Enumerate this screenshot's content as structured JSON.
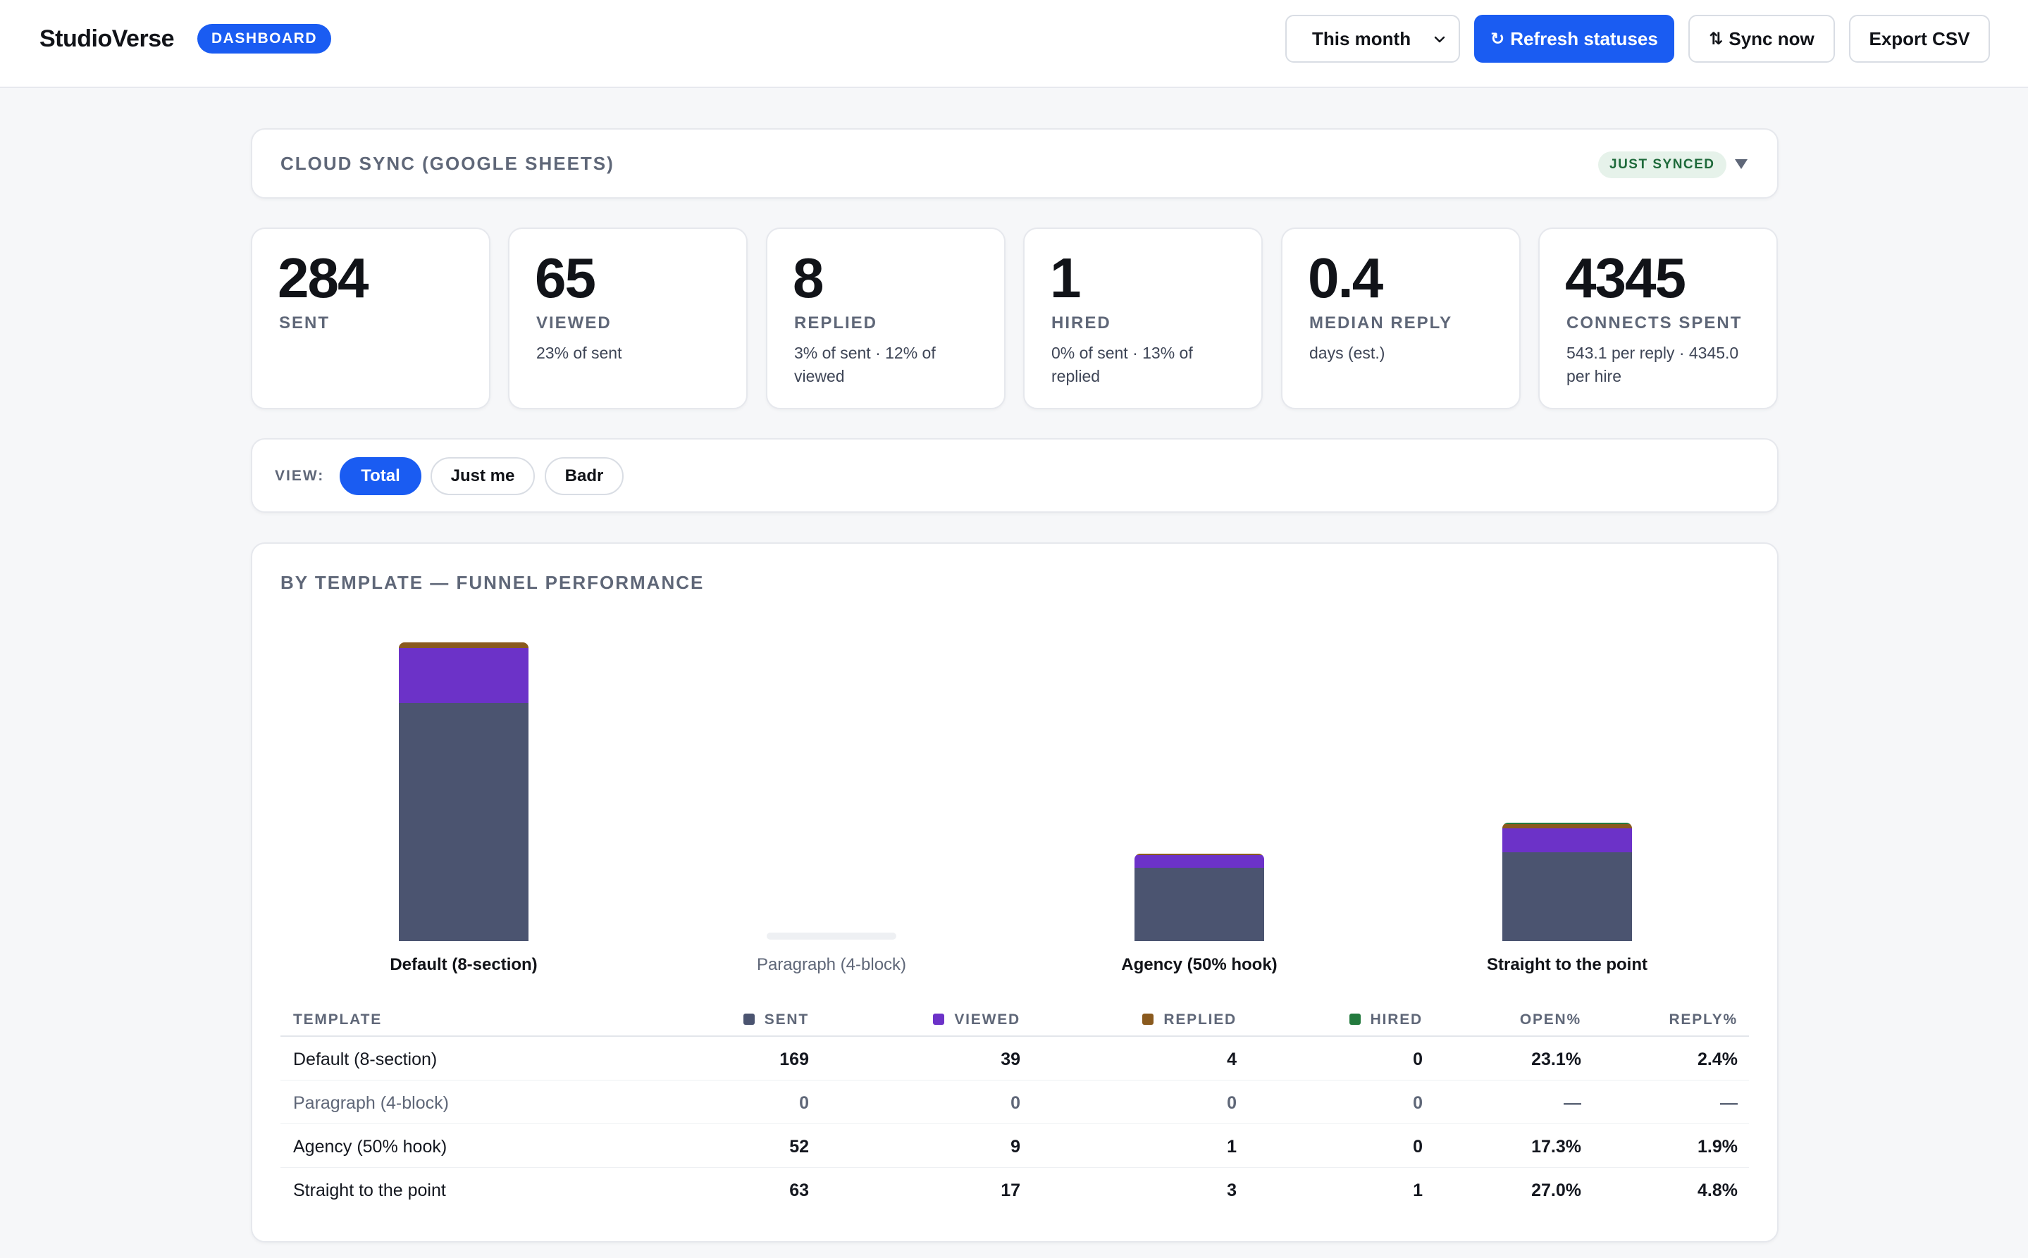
{
  "app": {
    "title": "StudioVerse",
    "badge": "DASHBOARD"
  },
  "toolbar": {
    "period": "This month",
    "refresh_label": "Refresh statuses",
    "refresh_glyph": "↻",
    "sync_label": "Sync now",
    "sync_glyph": "⇅",
    "export_label": "Export CSV"
  },
  "cloud_sync": {
    "title": "CLOUD SYNC (GOOGLE SHEETS)",
    "status": "JUST SYNCED",
    "toggle_icon": "caret-down-icon"
  },
  "stats": [
    {
      "value": "284",
      "label": "SENT",
      "sub": ""
    },
    {
      "value": "65",
      "label": "VIEWED",
      "sub": "23% of sent"
    },
    {
      "value": "8",
      "label": "REPLIED",
      "sub": "3% of sent · 12% of viewed"
    },
    {
      "value": "1",
      "label": "HIRED",
      "sub": "0% of sent · 13% of replied"
    },
    {
      "value": "0.4",
      "label": "MEDIAN REPLY",
      "sub": "days (est.)"
    },
    {
      "value": "4345",
      "label": "CONNECTS SPENT",
      "sub": "543.1 per reply · 4345.0 per hire"
    }
  ],
  "view": {
    "label": "VIEW:",
    "options": [
      "Total",
      "Just me",
      "Badr"
    ],
    "selected": "Total"
  },
  "funnel": {
    "title": "BY TEMPLATE — FUNNEL PERFORMANCE",
    "colors": {
      "sent": "#4b5470",
      "viewed": "#6c32c8",
      "replied": "#8a5a1e",
      "hired": "#237a3e",
      "empty": "#eef0f3",
      "muted_label": "#5f6778"
    },
    "table": {
      "headers": [
        "TEMPLATE",
        "SENT",
        "VIEWED",
        "REPLIED",
        "HIRED",
        "OPEN%",
        "REPLY%"
      ],
      "rows": [
        {
          "template": "Default (8-section)",
          "sent": "169",
          "viewed": "39",
          "replied": "4",
          "hired": "0",
          "open": "23.1%",
          "reply": "2.4%"
        },
        {
          "template": "Paragraph (4-block)",
          "sent": "0",
          "viewed": "0",
          "replied": "0",
          "hired": "0",
          "open": "—",
          "reply": "—"
        },
        {
          "template": "Agency (50% hook)",
          "sent": "52",
          "viewed": "9",
          "replied": "1",
          "hired": "0",
          "open": "17.3%",
          "reply": "1.9%"
        },
        {
          "template": "Straight to the point",
          "sent": "63",
          "viewed": "17",
          "replied": "3",
          "hired": "1",
          "open": "27.0%",
          "reply": "4.8%"
        }
      ]
    }
  },
  "chart_data": {
    "type": "bar",
    "title": "BY TEMPLATE — FUNNEL PERFORMANCE",
    "categories": [
      "Default (8-section)",
      "Paragraph (4-block)",
      "Agency (50% hook)",
      "Straight to the point"
    ],
    "series": [
      {
        "name": "SENT",
        "values": [
          169,
          0,
          52,
          63
        ]
      },
      {
        "name": "VIEWED",
        "values": [
          39,
          0,
          9,
          17
        ]
      },
      {
        "name": "REPLIED",
        "values": [
          4,
          0,
          1,
          3
        ]
      },
      {
        "name": "HIRED",
        "values": [
          0,
          0,
          0,
          1
        ]
      }
    ],
    "stacked": true,
    "grid": false,
    "legend": "table-header"
  }
}
